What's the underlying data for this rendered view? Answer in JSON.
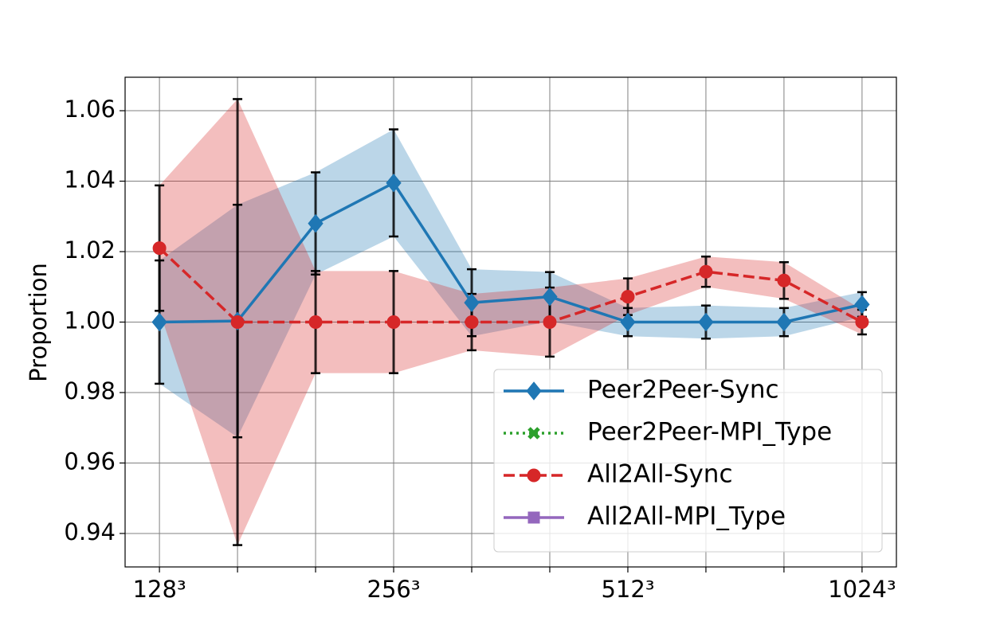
{
  "chart_data": {
    "type": "line",
    "y_label": "Proportion",
    "categories": [
      "128³",
      null,
      null,
      "256³",
      null,
      null,
      "512³",
      null,
      null,
      "1024³"
    ],
    "ylim": [
      0.9305,
      1.0695
    ],
    "yticks": [
      0.94,
      0.96,
      0.98,
      {
        "value": 1.0,
        "label": "1.00"
      },
      1.02,
      1.04,
      1.06
    ],
    "grid": true,
    "legend": "lower right",
    "series": [
      {
        "name": "Peer2Peer-Sync",
        "color": "#1f77b4",
        "linestyle": "solid",
        "marker": "diamond",
        "values": [
          1.0,
          1.0003,
          1.028,
          1.0395,
          1.0055,
          1.0072,
          1.0,
          1.0,
          1.0,
          1.005
        ],
        "errors": [
          0.0175,
          0.033,
          0.0145,
          0.0152,
          0.0095,
          0.007,
          0.004,
          0.0047,
          0.004,
          0.0035
        ]
      },
      {
        "name": "Peer2Peer-MPI_Type",
        "color": "#2ca02c",
        "linestyle": "dotted",
        "marker": "x",
        "values": [
          null,
          null,
          null,
          null,
          null,
          null,
          null,
          null,
          null,
          null
        ]
      },
      {
        "name": "All2All-Sync",
        "color": "#d62728",
        "linestyle": "dashed",
        "marker": "circle",
        "values": [
          1.021,
          1.0,
          1.0,
          1.0,
          1.0,
          1.0,
          1.0072,
          1.0143,
          1.0118,
          1.0
        ],
        "errors": [
          0.0178,
          0.0633,
          0.0145,
          0.0145,
          0.008,
          0.0098,
          0.0052,
          0.0043,
          0.0052,
          0.0035
        ]
      },
      {
        "name": "All2All-MPI_Type",
        "color": "#9467bd",
        "linestyle": "solid",
        "marker": "square",
        "values": [
          null,
          null,
          null,
          null,
          null,
          null,
          null,
          null,
          null,
          null
        ]
      }
    ]
  }
}
